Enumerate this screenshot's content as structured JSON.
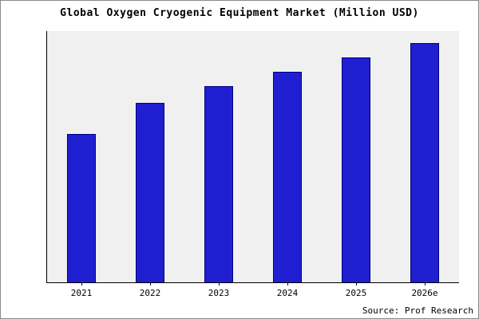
{
  "title": "Global Oxygen Cryogenic Equipment Market (Million USD)",
  "source": "Source: Prof Research",
  "colors": {
    "bar_fill": "#1f1fd1",
    "bar_edge": "#000080",
    "plot_bg": "#f0f0f0",
    "axis": "#000000"
  },
  "chart_data": {
    "type": "bar",
    "title": "Global Oxygen Cryogenic Equipment Market (Million USD)",
    "categories": [
      "2021",
      "2022",
      "2023",
      "2024",
      "2025",
      "2026e"
    ],
    "values": [
      62,
      75,
      82,
      88,
      94,
      100
    ],
    "xlabel": "",
    "ylabel": "",
    "ylim": [
      0,
      105
    ],
    "grid": false,
    "legend": false,
    "bar_color": "#1f1fd1",
    "source_annotation": "Source: Prof Research"
  }
}
